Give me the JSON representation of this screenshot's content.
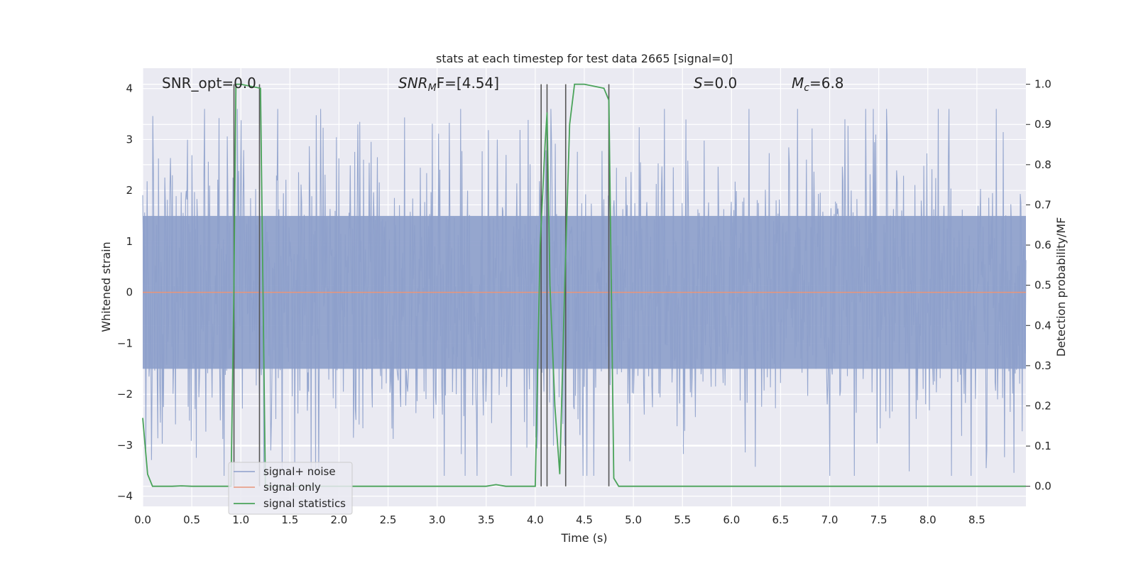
{
  "chart_data": {
    "type": "line",
    "title": "stats at each timestep for test data 2665 [signal=0]",
    "xlabel": "Time (s)",
    "ylabel": "Whitened strain",
    "ylabel_right": "Detection probability/MF",
    "xlim": [
      0.0,
      9.0
    ],
    "ylim": [
      -4.2,
      4.4
    ],
    "ylim_right": [
      -0.05,
      1.04
    ],
    "x_ticks": [
      "0.0",
      "0.5",
      "1.0",
      "1.5",
      "2.0",
      "2.5",
      "3.0",
      "3.5",
      "4.0",
      "4.5",
      "5.0",
      "5.5",
      "6.0",
      "6.5",
      "7.0",
      "7.5",
      "8.0",
      "8.5"
    ],
    "y_ticks": [
      "−4",
      "−3",
      "−2",
      "−1",
      "0",
      "1",
      "2",
      "3",
      "4"
    ],
    "y_ticks_right": [
      "0.0",
      "0.1",
      "0.2",
      "0.3",
      "0.4",
      "0.5",
      "0.6",
      "0.7",
      "0.8",
      "0.9",
      "1.0"
    ],
    "grid": true,
    "legend_placement": "lower-left",
    "annotations": {
      "snr_opt": "SNR_opt=0.0",
      "snr_mf_base": "SNR",
      "snr_mf_sub": "M",
      "snr_mf_tail": "F=[4.54]",
      "s_base": "S",
      "s_tail": "=0.0",
      "mc_base": "M",
      "mc_sub": "c",
      "mc_tail": "=6.8"
    },
    "vertical_lines_x": [
      0.93,
      1.19,
      4.06,
      4.12,
      4.31,
      4.75
    ],
    "series": [
      {
        "name": "signal+ noise",
        "color": "#8da0cb",
        "description_values": "whitened noise, approx. gaussian, peaks ~±3.5",
        "envelope": {
          "typical": 1.6,
          "peak": 3.6
        }
      },
      {
        "name": "signal only",
        "color": "#e8957a",
        "x": [
          0.0,
          9.0
        ],
        "y": [
          0.0,
          0.0
        ]
      },
      {
        "name": "signal statistics",
        "color": "#4aa35a",
        "axis": "right",
        "x": [
          0.0,
          0.05,
          0.1,
          0.2,
          0.3,
          0.4,
          0.5,
          0.9,
          0.93,
          0.95,
          1.0,
          1.2,
          1.25,
          1.3,
          3.5,
          3.6,
          3.7,
          4.0,
          4.05,
          4.1,
          4.12,
          4.15,
          4.2,
          4.25,
          4.3,
          4.35,
          4.4,
          4.5,
          4.7,
          4.75,
          4.8,
          4.85,
          4.9,
          9.0
        ],
        "y": [
          0.17,
          0.03,
          0.0,
          0.0,
          0.0,
          0.001,
          0.0,
          0.0,
          0.5,
          1.0,
          1.0,
          0.99,
          0.0,
          0.0,
          0.0,
          0.004,
          0.0,
          0.0,
          0.6,
          0.85,
          0.93,
          0.5,
          0.2,
          0.03,
          0.5,
          0.9,
          1.0,
          1.0,
          0.99,
          0.96,
          0.02,
          0.0,
          0.0,
          0.0
        ]
      }
    ],
    "vline_color": "#555555"
  }
}
